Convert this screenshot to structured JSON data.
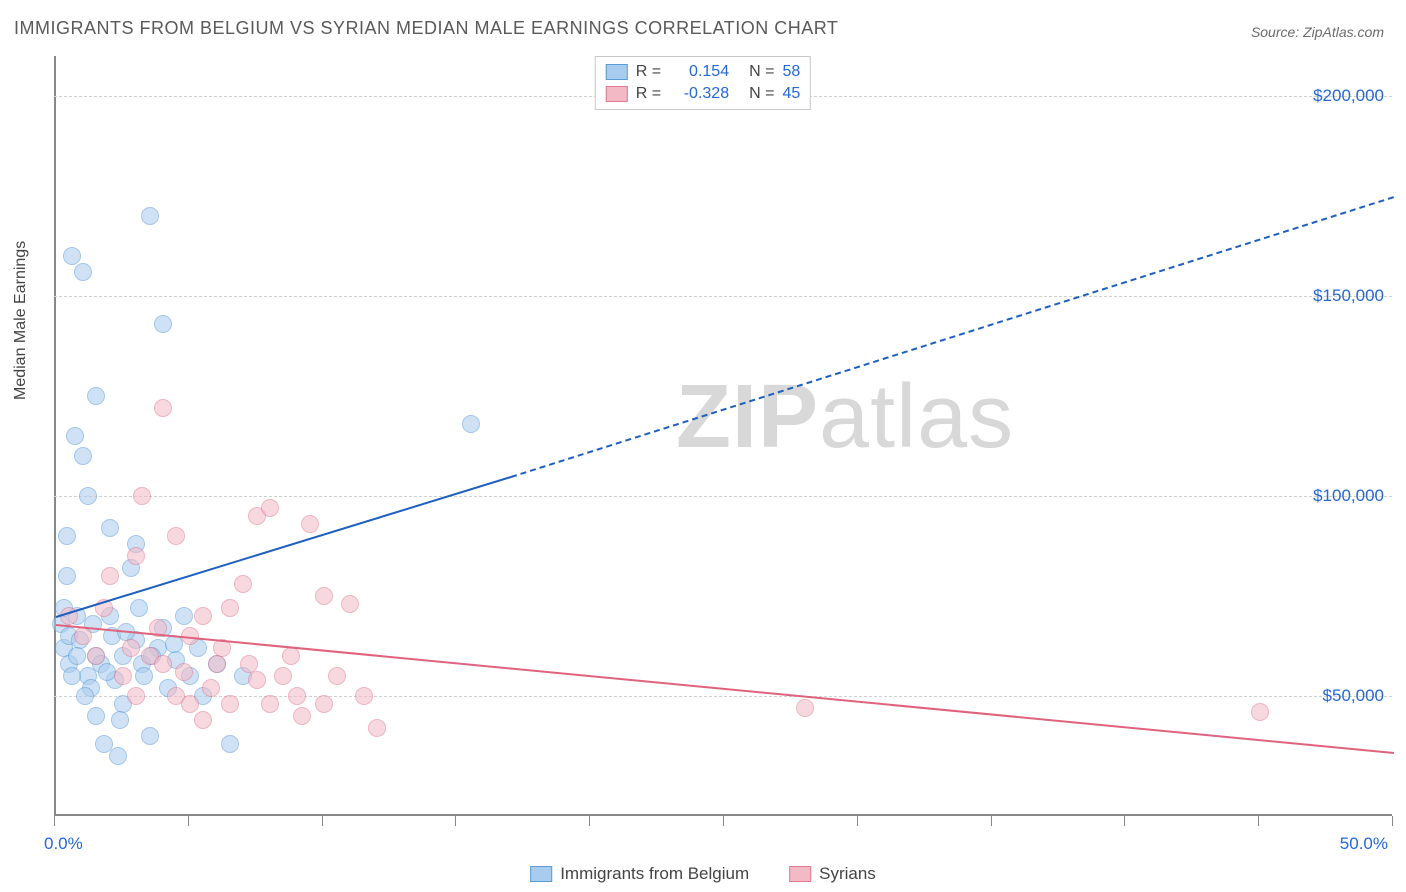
{
  "title": "IMMIGRANTS FROM BELGIUM VS SYRIAN MEDIAN MALE EARNINGS CORRELATION CHART",
  "source": "Source: ZipAtlas.com",
  "ylabel": "Median Male Earnings",
  "watermark_zip": "ZIP",
  "watermark_atlas": "atlas",
  "chart": {
    "type": "scatter",
    "x_domain": [
      0,
      50
    ],
    "y_domain": [
      20000,
      210000
    ],
    "y_gridlines": [
      50000,
      100000,
      150000,
      200000
    ],
    "y_tick_labels": [
      "$50,000",
      "$100,000",
      "$150,000",
      "$200,000"
    ],
    "x_tick_positions": [
      0,
      5,
      10,
      15,
      20,
      25,
      30,
      35,
      40,
      45,
      50
    ],
    "x_min_label": "0.0%",
    "x_max_label": "50.0%",
    "grid_color": "#d0d0d0",
    "axis_color": "#888888",
    "background_color": "#ffffff"
  },
  "series": [
    {
      "name": "Immigrants from Belgium",
      "fill_color": "#a9cbed",
      "stroke_color": "#5a9bd8",
      "trend_color": "#1e5fc0",
      "trend_p1": [
        0,
        70000
      ],
      "trend_p2_solid": [
        17,
        105000
      ],
      "trend_p2_dashed": [
        50,
        175000
      ],
      "R": "0.154",
      "N": "58",
      "points": [
        [
          0.2,
          68000
        ],
        [
          0.3,
          72000
        ],
        [
          0.3,
          62000
        ],
        [
          0.4,
          90000
        ],
        [
          0.5,
          65000
        ],
        [
          0.5,
          58000
        ],
        [
          0.6,
          160000
        ],
        [
          0.7,
          115000
        ],
        [
          0.8,
          70000
        ],
        [
          1.0,
          156000
        ],
        [
          1.0,
          110000
        ],
        [
          1.2,
          55000
        ],
        [
          1.3,
          52000
        ],
        [
          1.5,
          125000
        ],
        [
          1.5,
          60000
        ],
        [
          1.5,
          45000
        ],
        [
          1.8,
          38000
        ],
        [
          2.0,
          92000
        ],
        [
          2.0,
          70000
        ],
        [
          2.2,
          54000
        ],
        [
          2.3,
          35000
        ],
        [
          2.5,
          60000
        ],
        [
          2.5,
          48000
        ],
        [
          2.8,
          82000
        ],
        [
          3.0,
          88000
        ],
        [
          3.0,
          64000
        ],
        [
          3.2,
          58000
        ],
        [
          3.3,
          55000
        ],
        [
          3.5,
          170000
        ],
        [
          3.5,
          40000
        ],
        [
          3.8,
          62000
        ],
        [
          4.0,
          143000
        ],
        [
          4.0,
          67000
        ],
        [
          4.2,
          52000
        ],
        [
          4.5,
          59000
        ],
        [
          4.8,
          70000
        ],
        [
          5.0,
          55000
        ],
        [
          5.3,
          62000
        ],
        [
          5.5,
          50000
        ],
        [
          6.0,
          58000
        ],
        [
          6.5,
          38000
        ],
        [
          7.0,
          55000
        ],
        [
          15.5,
          118000
        ],
        [
          1.2,
          100000
        ],
        [
          2.1,
          65000
        ],
        [
          0.9,
          64000
        ],
        [
          1.7,
          58000
        ],
        [
          2.6,
          66000
        ],
        [
          3.1,
          72000
        ],
        [
          1.1,
          50000
        ],
        [
          0.8,
          60000
        ],
        [
          1.9,
          56000
        ],
        [
          2.4,
          44000
        ],
        [
          0.6,
          55000
        ],
        [
          1.4,
          68000
        ],
        [
          3.6,
          60000
        ],
        [
          4.4,
          63000
        ],
        [
          0.4,
          80000
        ]
      ]
    },
    {
      "name": "Syrians",
      "fill_color": "#f3b9c5",
      "stroke_color": "#e07a90",
      "trend_color": "#e0627d",
      "trend_p1": [
        0,
        68000
      ],
      "trend_p2_solid": [
        50,
        36000
      ],
      "trend_p2_dashed": [
        50,
        36000
      ],
      "R": "-0.328",
      "N": "45",
      "points": [
        [
          0.5,
          70000
        ],
        [
          1.0,
          65000
        ],
        [
          1.5,
          60000
        ],
        [
          2.0,
          80000
        ],
        [
          2.5,
          55000
        ],
        [
          3.0,
          85000
        ],
        [
          3.0,
          50000
        ],
        [
          3.2,
          100000
        ],
        [
          3.5,
          60000
        ],
        [
          4.0,
          122000
        ],
        [
          4.0,
          58000
        ],
        [
          4.5,
          90000
        ],
        [
          4.5,
          50000
        ],
        [
          5.0,
          65000
        ],
        [
          5.0,
          48000
        ],
        [
          5.5,
          70000
        ],
        [
          5.5,
          44000
        ],
        [
          6.0,
          58000
        ],
        [
          6.5,
          72000
        ],
        [
          6.5,
          48000
        ],
        [
          7.0,
          78000
        ],
        [
          7.5,
          95000
        ],
        [
          7.5,
          54000
        ],
        [
          8.0,
          97000
        ],
        [
          8.0,
          48000
        ],
        [
          8.5,
          55000
        ],
        [
          9.0,
          50000
        ],
        [
          9.5,
          93000
        ],
        [
          10.0,
          75000
        ],
        [
          10.0,
          48000
        ],
        [
          10.5,
          55000
        ],
        [
          11.0,
          73000
        ],
        [
          11.5,
          50000
        ],
        [
          12.0,
          42000
        ],
        [
          28.0,
          47000
        ],
        [
          45.0,
          46000
        ],
        [
          2.8,
          62000
        ],
        [
          3.8,
          67000
        ],
        [
          6.2,
          62000
        ],
        [
          7.2,
          58000
        ],
        [
          8.8,
          60000
        ],
        [
          1.8,
          72000
        ],
        [
          4.8,
          56000
        ],
        [
          5.8,
          52000
        ],
        [
          9.2,
          45000
        ]
      ]
    }
  ],
  "legend_top": {
    "r_label": "R =",
    "n_label": "N ="
  },
  "legend_bottom": [
    {
      "label": "Immigrants from Belgium",
      "series_idx": 0
    },
    {
      "label": "Syrians",
      "series_idx": 1
    }
  ],
  "label_color": "#2468d8",
  "text_color": "#444444"
}
